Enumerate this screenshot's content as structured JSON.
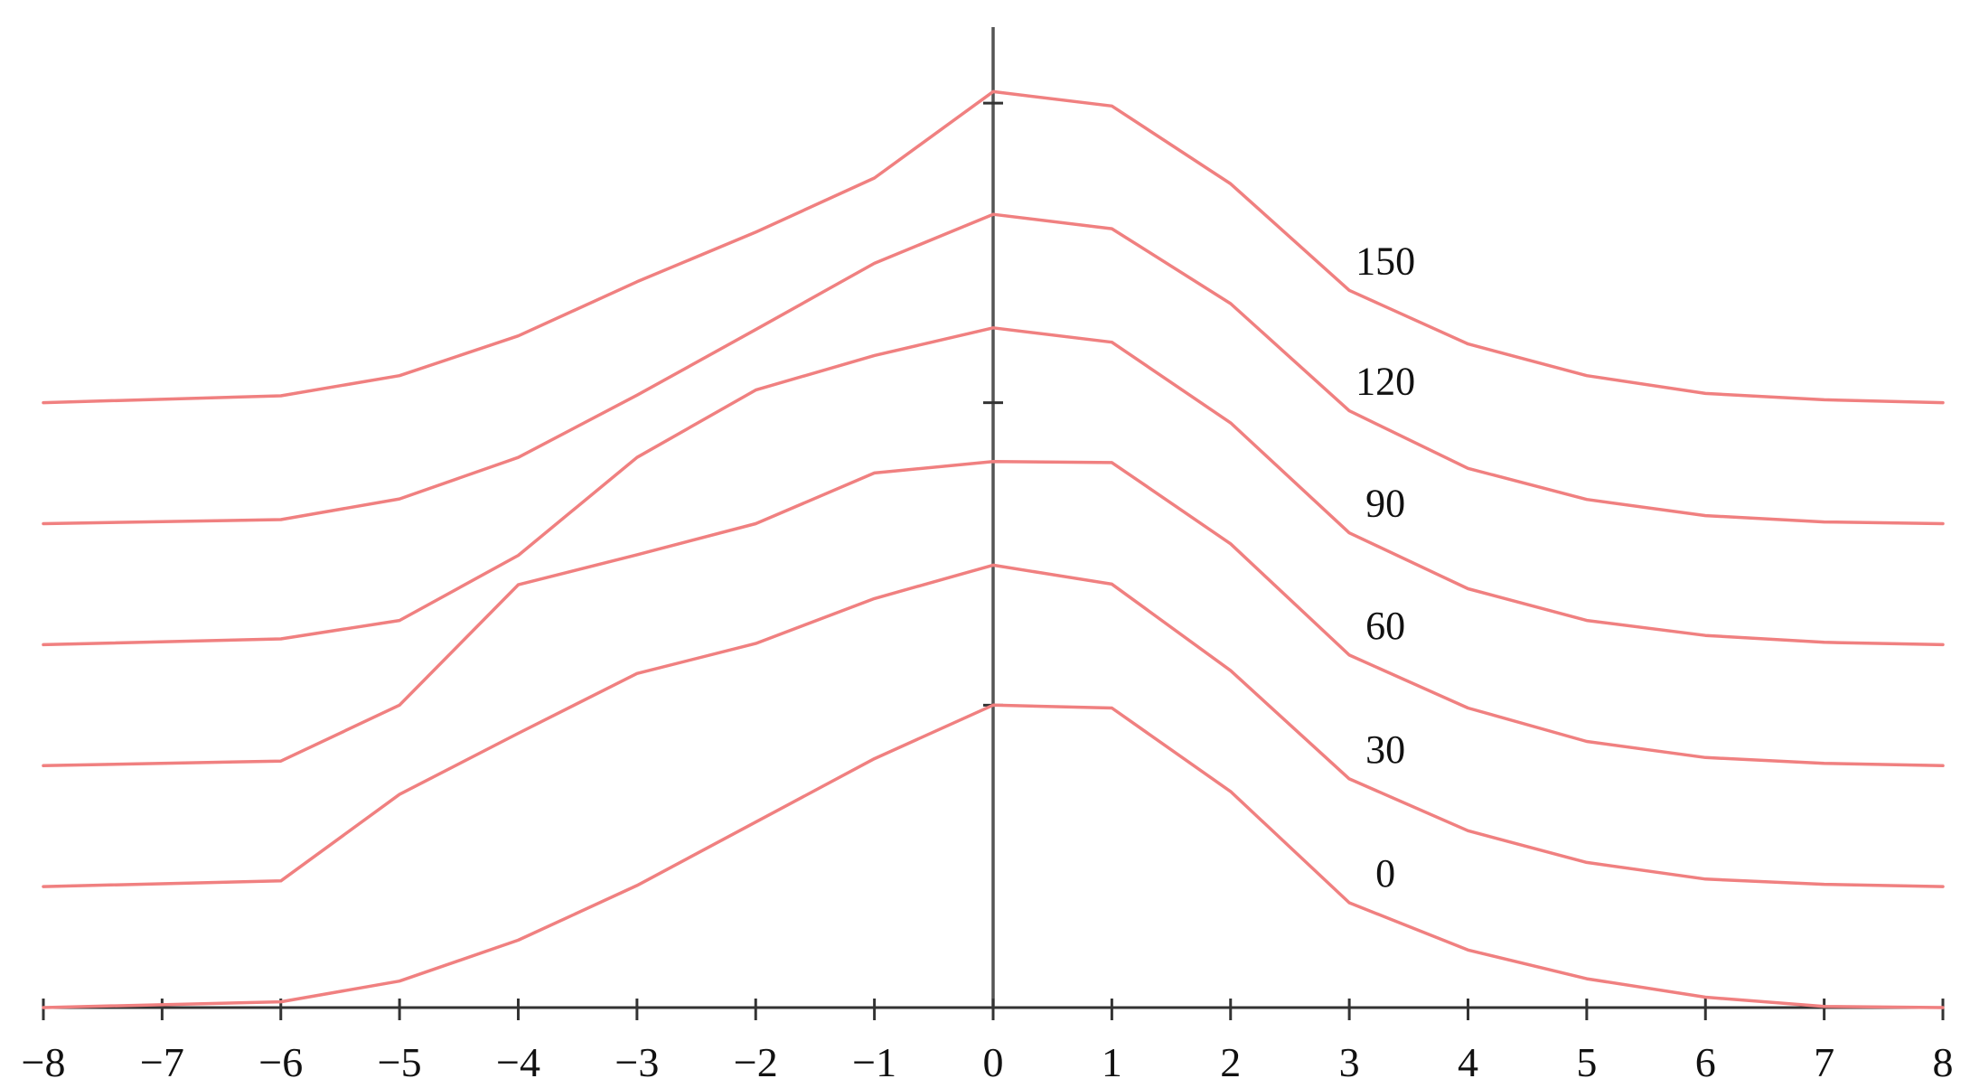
{
  "chart_data": {
    "type": "line",
    "title": "",
    "xlabel": "",
    "ylabel": "",
    "xlim": [
      -8,
      8
    ],
    "ylim": [
      0,
      1.6
    ],
    "grid": false,
    "legend": "none",
    "x_ticks": [
      -8,
      -7,
      -6,
      -5,
      -4,
      -3,
      -2,
      -1,
      0,
      1,
      2,
      3,
      4,
      5,
      6,
      7,
      8
    ],
    "x_tick_labels": [
      "−8",
      "−7",
      "−6",
      "−5",
      "−4",
      "−3",
      "−2",
      "−1",
      "0",
      "1",
      "2",
      "3",
      "4",
      "5",
      "6",
      "7",
      "8"
    ],
    "line_color": "#f08080",
    "axis_color": "#555555",
    "series": [
      {
        "label": "0",
        "points": [
          [
            -8,
            0.0
          ],
          [
            -6,
            0.01
          ],
          [
            -5,
            0.046
          ],
          [
            -4,
            0.117
          ],
          [
            -3,
            0.212
          ],
          [
            -2,
            0.322
          ],
          [
            -1,
            0.432
          ],
          [
            0,
            0.525
          ],
          [
            1,
            0.52
          ],
          [
            2,
            0.375
          ],
          [
            3,
            0.182
          ],
          [
            4,
            0.1
          ],
          [
            5,
            0.05
          ],
          [
            6,
            0.018
          ],
          [
            7,
            0.002
          ],
          [
            8,
            0.0
          ]
        ]
      },
      {
        "label": "30",
        "points": [
          [
            -8,
            0.21
          ],
          [
            -6,
            0.22
          ],
          [
            -5,
            0.37
          ],
          [
            -4,
            0.476
          ],
          [
            -3,
            0.58
          ],
          [
            -2,
            0.632
          ],
          [
            -1,
            0.71
          ],
          [
            0,
            0.768
          ],
          [
            1,
            0.735
          ],
          [
            2,
            0.585
          ],
          [
            3,
            0.397
          ],
          [
            4,
            0.307
          ],
          [
            5,
            0.252
          ],
          [
            6,
            0.223
          ],
          [
            7,
            0.214
          ],
          [
            8,
            0.21
          ]
        ]
      },
      {
        "label": "60",
        "points": [
          [
            -8,
            0.42
          ],
          [
            -6,
            0.428
          ],
          [
            -5,
            0.525
          ],
          [
            -4,
            0.734
          ],
          [
            -3,
            0.786
          ],
          [
            -2,
            0.84
          ],
          [
            -1,
            0.928
          ],
          [
            0,
            0.948
          ],
          [
            1,
            0.946
          ],
          [
            2,
            0.805
          ],
          [
            3,
            0.612
          ],
          [
            4,
            0.52
          ],
          [
            5,
            0.462
          ],
          [
            6,
            0.434
          ],
          [
            7,
            0.424
          ],
          [
            8,
            0.42
          ]
        ]
      },
      {
        "label": "90",
        "points": [
          [
            -8,
            0.63
          ],
          [
            -6,
            0.64
          ],
          [
            -5,
            0.672
          ],
          [
            -4,
            0.785
          ],
          [
            -3,
            0.955
          ],
          [
            -2,
            1.072
          ],
          [
            -1,
            1.132
          ],
          [
            0,
            1.18
          ],
          [
            1,
            1.155
          ],
          [
            2,
            1.015
          ],
          [
            3,
            0.824
          ],
          [
            4,
            0.727
          ],
          [
            5,
            0.672
          ],
          [
            6,
            0.646
          ],
          [
            7,
            0.634
          ],
          [
            8,
            0.63
          ]
        ]
      },
      {
        "label": "120",
        "points": [
          [
            -8,
            0.84
          ],
          [
            -6,
            0.847
          ],
          [
            -5,
            0.883
          ],
          [
            -4,
            0.955
          ],
          [
            -3,
            1.063
          ],
          [
            -2,
            1.177
          ],
          [
            -1,
            1.292
          ],
          [
            0,
            1.377
          ],
          [
            1,
            1.352
          ],
          [
            2,
            1.222
          ],
          [
            3,
            1.036
          ],
          [
            4,
            0.936
          ],
          [
            5,
            0.882
          ],
          [
            6,
            0.854
          ],
          [
            7,
            0.843
          ],
          [
            8,
            0.84
          ]
        ]
      },
      {
        "label": "150",
        "points": [
          [
            -8,
            1.05
          ],
          [
            -6,
            1.062
          ],
          [
            -5,
            1.097
          ],
          [
            -4,
            1.166
          ],
          [
            -3,
            1.26
          ],
          [
            -2,
            1.346
          ],
          [
            -1,
            1.44
          ],
          [
            0,
            1.59
          ],
          [
            1,
            1.565
          ],
          [
            2,
            1.43
          ],
          [
            3,
            1.245
          ],
          [
            4,
            1.152
          ],
          [
            5,
            1.097
          ],
          [
            6,
            1.066
          ],
          [
            7,
            1.055
          ],
          [
            8,
            1.05
          ]
        ]
      }
    ]
  }
}
